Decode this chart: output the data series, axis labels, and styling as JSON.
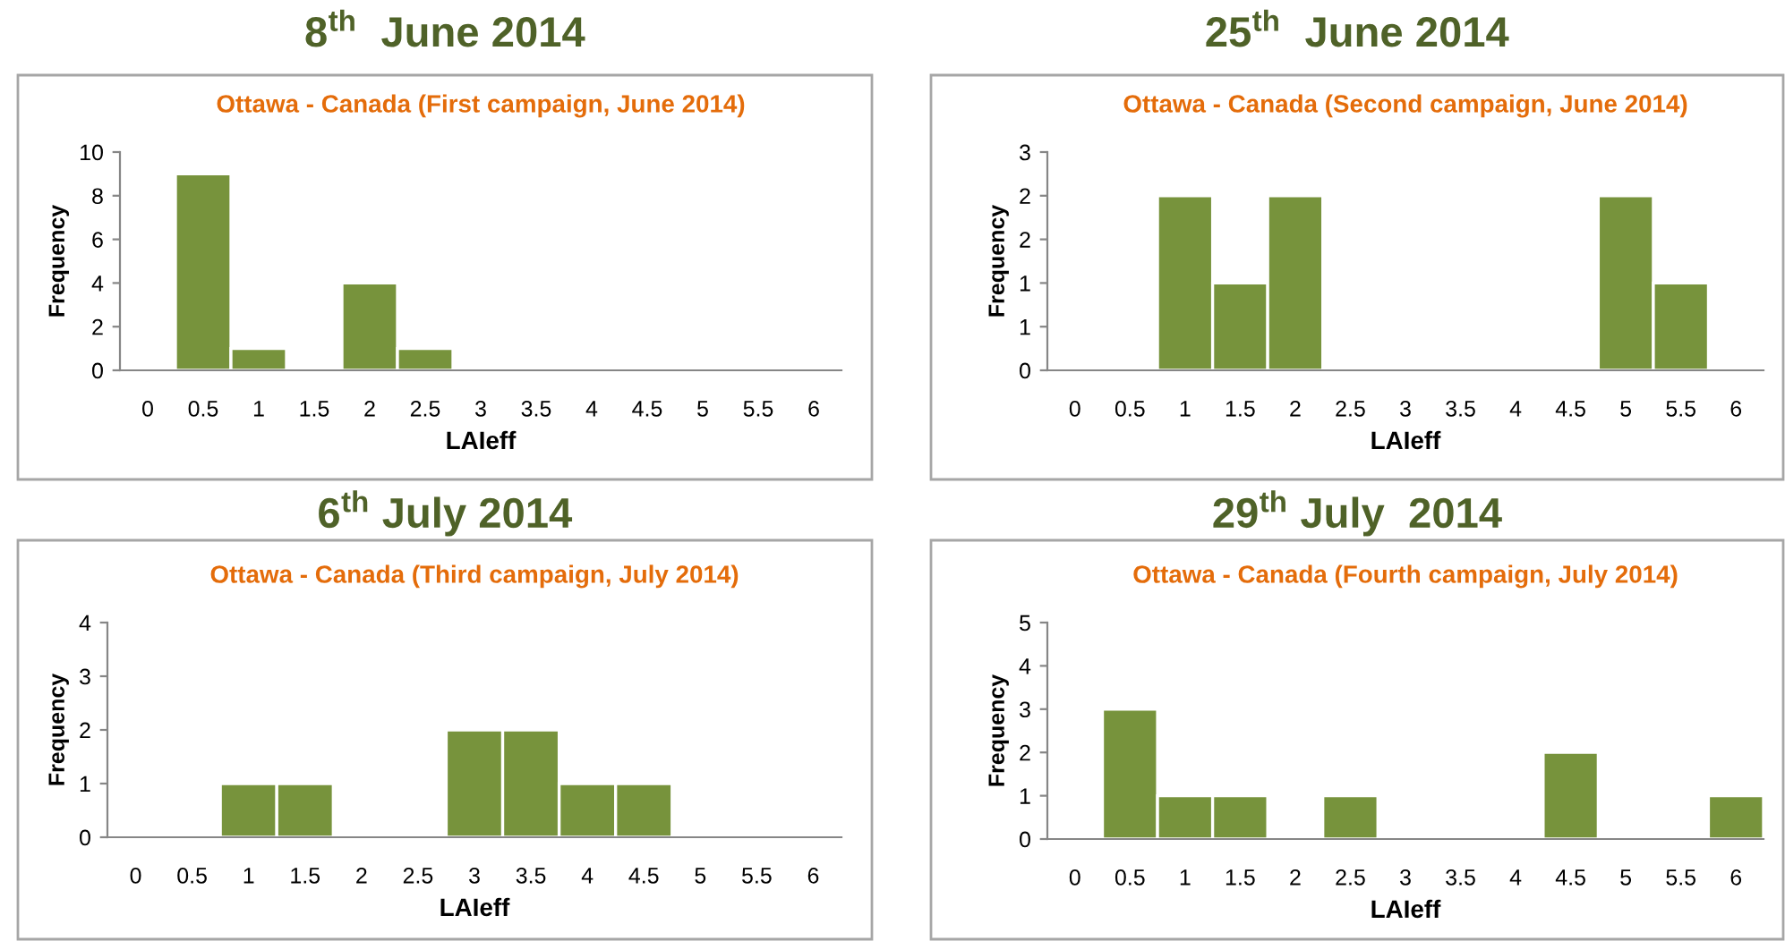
{
  "chart_data": [
    {
      "type": "bar",
      "title": "8$^{th}$  June 2014",
      "subtitle": "Ottawa - Canada (First campaign, June 2014)",
      "xlabel": "LAIeff",
      "ylabel": "Frequency",
      "categories": [
        "0",
        "0.5",
        "1",
        "1.5",
        "2",
        "2.5",
        "3",
        "3.5",
        "4",
        "4.5",
        "5",
        "5.5",
        "6"
      ],
      "values": [
        0,
        9,
        1,
        0,
        4,
        1,
        0,
        0,
        0,
        0,
        0,
        0,
        0
      ],
      "color": "#77933c",
      "ylim": [
        0,
        10
      ],
      "yticks": [
        0,
        2,
        4,
        6,
        8,
        10
      ],
      "grid": false,
      "legend": false
    },
    {
      "type": "bar",
      "title": "25$^{th}$  June 2014",
      "subtitle": "Ottawa - Canada (Second campaign, June 2014)",
      "xlabel": "LAIeff",
      "ylabel": "Frequency",
      "categories": [
        "0",
        "0.5",
        "1",
        "1.5",
        "2",
        "2.5",
        "3",
        "3.5",
        "4",
        "4.5",
        "5",
        "5.5",
        "6"
      ],
      "values": [
        0,
        0,
        2,
        1,
        2,
        0,
        0,
        0,
        0,
        0,
        2,
        1,
        0
      ],
      "color": "#77933c",
      "ylim": [
        0,
        2.5
      ],
      "yticks": [
        0,
        {
          "value": 0.5,
          "label": "1"
        },
        1,
        {
          "value": 1.5,
          "label": "2"
        },
        2,
        {
          "value": 2.5,
          "label": "3"
        }
      ],
      "grid": false,
      "legend": false
    },
    {
      "type": "bar",
      "title": "6$^{th}$ July 2014",
      "subtitle": "Ottawa - Canada (Third campaign, July 2014)",
      "xlabel": "LAIeff",
      "ylabel": "Frequency",
      "categories": [
        "0",
        "0.5",
        "1",
        "1.5",
        "2",
        "2.5",
        "3",
        "3.5",
        "4",
        "4.5",
        "5",
        "5.5",
        "6"
      ],
      "values": [
        0,
        0,
        1,
        1,
        0,
        0,
        2,
        2,
        1,
        1,
        0,
        0,
        0
      ],
      "color": "#77933c",
      "ylim": [
        0,
        4
      ],
      "yticks": [
        0,
        1,
        2,
        3,
        4
      ],
      "grid": false,
      "legend": false
    },
    {
      "type": "bar",
      "title": "29$^{th}$ July  2014",
      "subtitle": "Ottawa - Canada (Fourth campaign, July 2014)",
      "xlabel": "LAIeff",
      "ylabel": "Frequency",
      "categories": [
        "0",
        "0.5",
        "1",
        "1.5",
        "2",
        "2.5",
        "3",
        "3.5",
        "4",
        "4.5",
        "5",
        "5.5",
        "6"
      ],
      "values": [
        0,
        3,
        1,
        1,
        0,
        1,
        0,
        0,
        0,
        2,
        0,
        0,
        1
      ],
      "color": "#77933c",
      "ylim": [
        0,
        5
      ],
      "yticks": [
        0,
        1,
        2,
        3,
        4,
        5
      ],
      "grid": false,
      "legend": false
    }
  ]
}
